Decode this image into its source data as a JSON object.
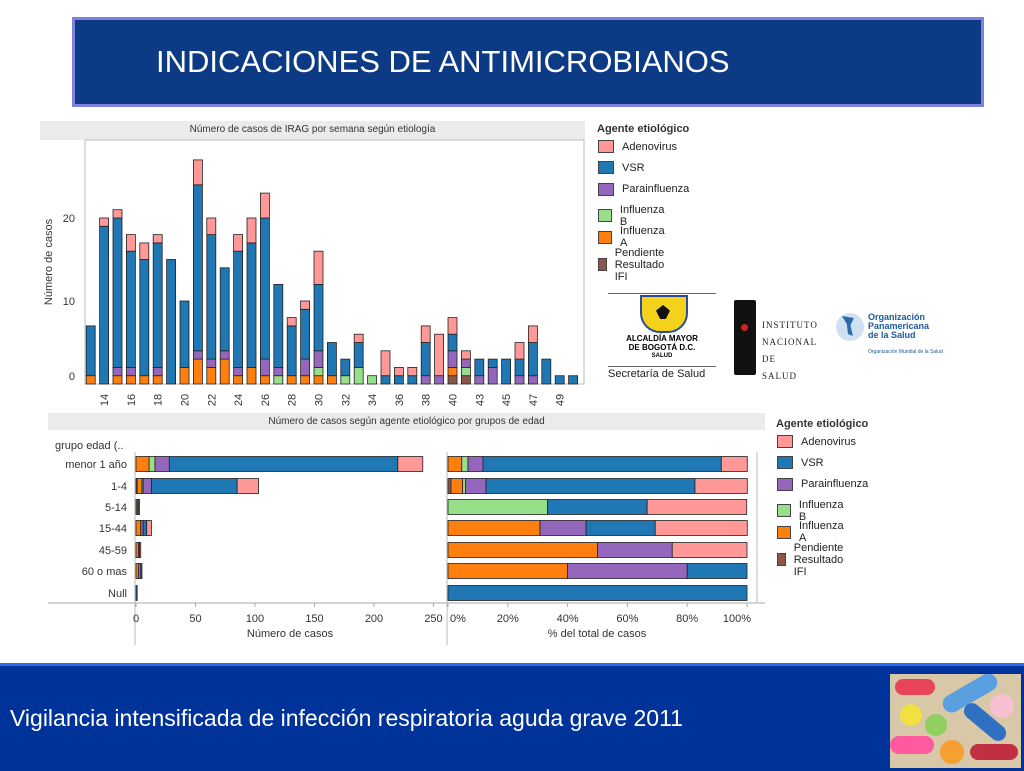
{
  "slide": {
    "title": "INDICACIONES DE ANTIMICROBIANOS",
    "footer": "Vigilancia intensificada de infección respiratoria aguda grave 2011"
  },
  "colors": {
    "Adenovirus": "#ff9896",
    "VSR": "#1f77b4",
    "Parainfluenza": "#9467bd",
    "Influenza B": "#98df8a",
    "Influenza A": "#ff7f0e",
    "Pendiente Resultado IFI": "#8c564b",
    "title_bg": "#0d3a85",
    "footer_bg": "#003399"
  },
  "legend": {
    "title": "Agente etiológico",
    "items": [
      "Adenovirus",
      "VSR",
      "Parainfluenza",
      "Influenza B",
      "Influenza A",
      "Pendiente Resultado IFI"
    ]
  },
  "logos": {
    "bogota": {
      "line1": "ALCALDÍA MAYOR",
      "line2": "DE BOGOTÁ D.C.",
      "line3": "SALUD",
      "caption": "Secretaría de Salud"
    },
    "ins": {
      "line1": "INSTITUTO",
      "line2": "NACIONAL DE",
      "line3": "SALUD"
    },
    "ops": {
      "line1": "Organización",
      "line2": "Panamericana",
      "line3": "de la Salud",
      "line4": "Organización Mundial de la Salud"
    }
  },
  "chart_data": [
    {
      "type": "bar",
      "stacked": true,
      "title": "Número de casos de IRAG por semana según etiología",
      "xlabel": "",
      "ylabel": "Número de casos",
      "ylim": [
        0,
        28
      ],
      "yticks": [
        0,
        10,
        20
      ],
      "grid": false,
      "legend_position": "right",
      "categories": [
        "13",
        "14",
        "15",
        "16",
        "17",
        "18",
        "19",
        "20",
        "21",
        "22",
        "23",
        "24",
        "25",
        "26",
        "27",
        "28",
        "29",
        "30",
        "31",
        "32",
        "33",
        "34",
        "35",
        "36",
        "37",
        "38",
        "39",
        "40",
        "42",
        "43",
        "44",
        "45",
        "46",
        "47",
        "48",
        "49",
        "50"
      ],
      "xtick_labels": [
        "14",
        "16",
        "18",
        "20",
        "22",
        "24",
        "26",
        "28",
        "30",
        "32",
        "34",
        "36",
        "38",
        "40",
        "43",
        "45",
        "47",
        "49"
      ],
      "series": [
        {
          "name": "Pendiente Resultado IFI",
          "values": [
            0,
            0,
            0,
            0,
            0,
            0,
            0,
            0,
            0,
            0,
            0,
            0,
            0,
            0,
            0,
            0,
            0,
            0,
            0,
            0,
            0,
            0,
            0,
            0,
            0,
            0,
            0,
            1,
            1,
            0,
            0,
            0,
            0,
            0,
            0,
            0,
            0
          ]
        },
        {
          "name": "Influenza A",
          "values": [
            1,
            0,
            1,
            1,
            1,
            1,
            0,
            2,
            3,
            2,
            3,
            1,
            2,
            1,
            0,
            1,
            1,
            1,
            1,
            0,
            0,
            0,
            0,
            0,
            0,
            0,
            0,
            1,
            0,
            0,
            0,
            0,
            0,
            0,
            0,
            0,
            0
          ]
        },
        {
          "name": "Influenza B",
          "values": [
            0,
            0,
            0,
            0,
            0,
            0,
            0,
            0,
            0,
            0,
            0,
            0,
            0,
            0,
            1,
            0,
            0,
            1,
            0,
            1,
            2,
            1,
            0,
            0,
            0,
            0,
            0,
            0,
            1,
            0,
            0,
            0,
            0,
            0,
            0,
            0,
            0
          ]
        },
        {
          "name": "Parainfluenza",
          "values": [
            0,
            0,
            1,
            1,
            0,
            1,
            0,
            0,
            1,
            1,
            1,
            1,
            0,
            2,
            1,
            0,
            2,
            2,
            0,
            0,
            0,
            0,
            0,
            0,
            0,
            1,
            1,
            2,
            1,
            1,
            2,
            0,
            1,
            1,
            0,
            0,
            0
          ]
        },
        {
          "name": "VSR",
          "values": [
            6,
            19,
            18,
            14,
            14,
            15,
            15,
            8,
            20,
            15,
            10,
            14,
            15,
            17,
            10,
            6,
            6,
            8,
            4,
            2,
            3,
            0,
            1,
            1,
            1,
            4,
            0,
            2,
            0,
            2,
            1,
            3,
            2,
            4,
            3,
            1,
            1
          ]
        },
        {
          "name": "Adenovirus",
          "values": [
            0,
            1,
            1,
            2,
            2,
            1,
            0,
            0,
            3,
            2,
            0,
            2,
            3,
            3,
            0,
            1,
            1,
            4,
            0,
            0,
            1,
            0,
            3,
            1,
            1,
            2,
            5,
            2,
            1,
            0,
            0,
            0,
            2,
            2,
            0,
            0,
            0
          ]
        }
      ]
    },
    {
      "type": "bar",
      "orientation": "horizontal",
      "stacked": true,
      "title": "Número de casos según agente etiológico por grupos de edad",
      "row_header": "grupo edad (..",
      "xlabel": "Número de casos",
      "xlim": [
        0,
        250
      ],
      "xticks": [
        "0",
        "50",
        "100",
        "150",
        "200",
        "250"
      ],
      "categories": [
        "menor 1 año",
        "1-4",
        "5-14",
        "15-44",
        "45-59",
        "60 o mas",
        "Null"
      ],
      "series": [
        {
          "name": "Pendiente Resultado IFI",
          "values": [
            0,
            1,
            0,
            0,
            0,
            0,
            0
          ]
        },
        {
          "name": "Influenza A",
          "values": [
            11,
            4,
            0,
            4,
            2,
            2,
            0
          ]
        },
        {
          "name": "Influenza B",
          "values": [
            5,
            1,
            1,
            0,
            0,
            0,
            0
          ]
        },
        {
          "name": "Parainfluenza",
          "values": [
            12,
            7,
            0,
            2,
            1,
            2,
            0
          ]
        },
        {
          "name": "VSR",
          "values": [
            192,
            72,
            1,
            3,
            0,
            1,
            1
          ]
        },
        {
          "name": "Adenovirus",
          "values": [
            21,
            18,
            1,
            4,
            1,
            0,
            0
          ]
        }
      ]
    },
    {
      "type": "bar",
      "orientation": "horizontal",
      "stacked": true,
      "xlabel": "% del total de casos",
      "xlim": [
        0,
        100
      ],
      "xticks": [
        "0%",
        "20%",
        "40%",
        "60%",
        "80%",
        "100%"
      ],
      "categories": [
        "menor 1 año",
        "1-4",
        "5-14",
        "15-44",
        "45-59",
        "60 o mas",
        "Null"
      ],
      "series": [
        {
          "name": "Pendiente Resultado IFI",
          "values": [
            0,
            1.0,
            0,
            0,
            0,
            0,
            0
          ]
        },
        {
          "name": "Influenza A",
          "values": [
            4.6,
            3.9,
            0,
            30.8,
            50,
            40,
            0
          ]
        },
        {
          "name": "Influenza B",
          "values": [
            2.1,
            1.0,
            33.3,
            0,
            0,
            0,
            0
          ]
        },
        {
          "name": "Parainfluenza",
          "values": [
            5.0,
            6.8,
            0,
            15.4,
            25,
            40,
            0
          ]
        },
        {
          "name": "VSR",
          "values": [
            79.7,
            69.9,
            33.3,
            23.1,
            0,
            20,
            100
          ]
        },
        {
          "name": "Adenovirus",
          "values": [
            8.7,
            17.5,
            33.3,
            30.8,
            25,
            0,
            0
          ]
        }
      ]
    }
  ]
}
